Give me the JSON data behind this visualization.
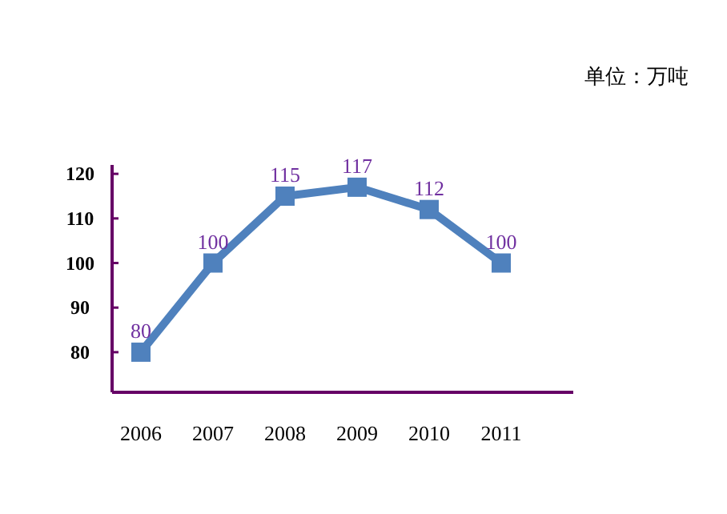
{
  "chart_data": {
    "type": "line",
    "categories": [
      "2006",
      "2007",
      "2008",
      "2009",
      "2010",
      "2011"
    ],
    "series": [
      {
        "color": "#4f81bd",
        "values": [
          80,
          100,
          115,
          117,
          112,
          100
        ]
      }
    ],
    "ylim": [
      71,
      122
    ],
    "yticks": [
      80,
      90,
      100,
      110,
      120
    ],
    "data_labels": true,
    "marker": "square",
    "line_style": "solid",
    "grid": false,
    "annotations": [
      "单位：万吨"
    ]
  }
}
